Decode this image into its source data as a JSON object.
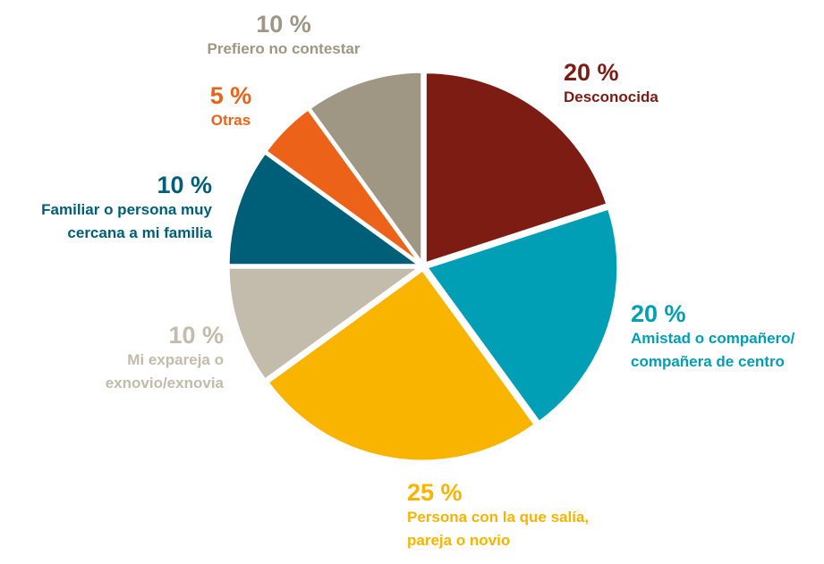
{
  "chart_data": {
    "type": "pie",
    "categories": [
      "Desconocida",
      "Amistad o compañero/\ncompañera de centro",
      "Persona con la que salía,\npareja o novio",
      "Mi expareja o\nexnovio/exnovia",
      "Familiar o persona muy\ncercana a mi familia",
      "Otras",
      "Prefiero no contestar"
    ],
    "values": [
      20,
      20,
      25,
      10,
      10,
      5,
      10
    ],
    "value_labels": [
      "20 %",
      "20 %",
      "25 %",
      "10 %",
      "10 %",
      "5 %",
      "10 %"
    ],
    "colors": [
      "#7d1c13",
      "#009fb5",
      "#f9b400",
      "#c3bbab",
      "#005f78",
      "#ec6218",
      "#a09684"
    ]
  }
}
